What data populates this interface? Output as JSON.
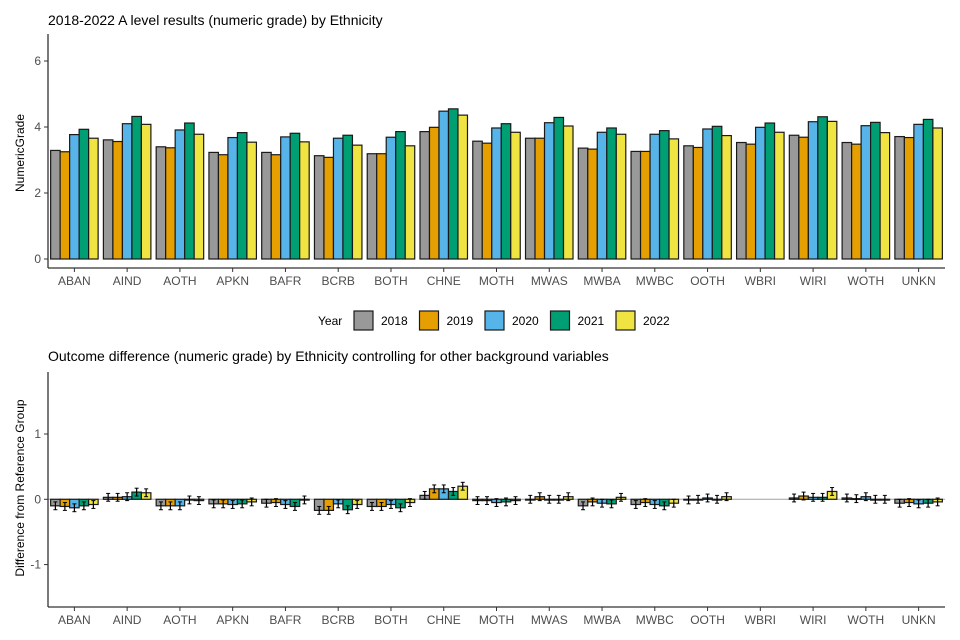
{
  "chart_data": [
    {
      "type": "bar",
      "title": "2018-2022 A level results (numeric grade) by Ethnicity",
      "xlabel": "",
      "ylabel": "NumericGrade",
      "ylim": [
        0,
        6.8
      ],
      "yticks": [
        0,
        2,
        4,
        6
      ],
      "grid": false,
      "categories": [
        "ABAN",
        "AIND",
        "AOTH",
        "APKN",
        "BAFR",
        "BCRB",
        "BOTH",
        "CHNE",
        "MOTH",
        "MWAS",
        "MWBA",
        "MWBC",
        "OOTH",
        "WBRI",
        "WIRI",
        "WOTH",
        "UNKN"
      ],
      "series": [
        {
          "name": "2018",
          "color": "#999999",
          "values": [
            3.29,
            3.61,
            3.4,
            3.23,
            3.23,
            3.13,
            3.19,
            3.86,
            3.57,
            3.66,
            3.36,
            3.26,
            3.43,
            3.53,
            3.75,
            3.53,
            3.71
          ]
        },
        {
          "name": "2019",
          "color": "#E69F00",
          "values": [
            3.25,
            3.56,
            3.37,
            3.16,
            3.16,
            3.08,
            3.19,
            3.99,
            3.51,
            3.66,
            3.33,
            3.26,
            3.38,
            3.48,
            3.69,
            3.48,
            3.68
          ]
        },
        {
          "name": "2020",
          "color": "#56B4E9",
          "values": [
            3.77,
            4.1,
            3.91,
            3.68,
            3.7,
            3.66,
            3.69,
            4.48,
            3.97,
            4.13,
            3.84,
            3.78,
            3.94,
            3.99,
            4.16,
            4.04,
            4.08
          ]
        },
        {
          "name": "2021",
          "color": "#009E73",
          "values": [
            3.93,
            4.32,
            4.12,
            3.83,
            3.81,
            3.75,
            3.86,
            4.55,
            4.1,
            4.29,
            3.97,
            3.89,
            4.02,
            4.12,
            4.31,
            4.14,
            4.23
          ]
        },
        {
          "name": "2022",
          "color": "#F0E442",
          "values": [
            3.66,
            4.08,
            3.78,
            3.54,
            3.55,
            3.45,
            3.43,
            4.36,
            3.84,
            4.03,
            3.78,
            3.64,
            3.74,
            3.84,
            4.17,
            3.83,
            3.97
          ]
        }
      ],
      "legend": {
        "title": "Year",
        "placement": "bottom"
      }
    },
    {
      "type": "bar",
      "title": "Outcome difference (numeric grade) by Ethnicity controlling for other background variables",
      "xlabel": "",
      "ylabel": "Difference from Reference Group",
      "ylim": [
        -1.65,
        1.95
      ],
      "yticks": [
        -1,
        0,
        1
      ],
      "grid": false,
      "reference_line": 0,
      "error_bars": true,
      "error_halfwidth": 0.06,
      "categories": [
        "ABAN",
        "AIND",
        "AOTH",
        "APKN",
        "BAFR",
        "BCRB",
        "BOTH",
        "CHNE",
        "MOTH",
        "MWAS",
        "MWBA",
        "MWBC",
        "OOTH",
        "WBRI",
        "WIRI",
        "WOTH",
        "UNKN"
      ],
      "series": [
        {
          "name": "2018",
          "color": "#999999",
          "values": [
            -0.1,
            0.03,
            -0.1,
            -0.07,
            -0.06,
            -0.17,
            -0.11,
            0.06,
            -0.02,
            0.0,
            -0.1,
            -0.08,
            -0.01,
            0,
            0.02,
            0.02,
            -0.06
          ]
        },
        {
          "name": "2019",
          "color": "#E69F00",
          "values": [
            -0.11,
            0.03,
            -0.1,
            -0.07,
            -0.05,
            -0.17,
            -0.11,
            0.16,
            -0.02,
            0.04,
            -0.04,
            -0.05,
            0.0,
            0,
            0.05,
            0.01,
            -0.05
          ]
        },
        {
          "name": "2020",
          "color": "#56B4E9",
          "values": [
            -0.13,
            0.04,
            -0.1,
            -0.08,
            -0.08,
            -0.07,
            -0.08,
            0.16,
            -0.05,
            0.0,
            -0.06,
            -0.08,
            0.02,
            0,
            0.03,
            0.04,
            -0.07
          ]
        },
        {
          "name": "2021",
          "color": "#009E73",
          "values": [
            -0.1,
            0.11,
            -0.01,
            -0.07,
            -0.11,
            -0.16,
            -0.13,
            0.12,
            -0.04,
            0.0,
            -0.07,
            -0.1,
            0.0,
            0,
            0.03,
            0.0,
            -0.06
          ]
        },
        {
          "name": "2022",
          "color": "#F0E442",
          "values": [
            -0.08,
            0.1,
            -0.02,
            -0.04,
            -0.01,
            -0.08,
            -0.05,
            0.2,
            -0.02,
            0.04,
            0.03,
            -0.06,
            0.04,
            0,
            0.12,
            0.0,
            -0.04
          ]
        }
      ]
    }
  ]
}
